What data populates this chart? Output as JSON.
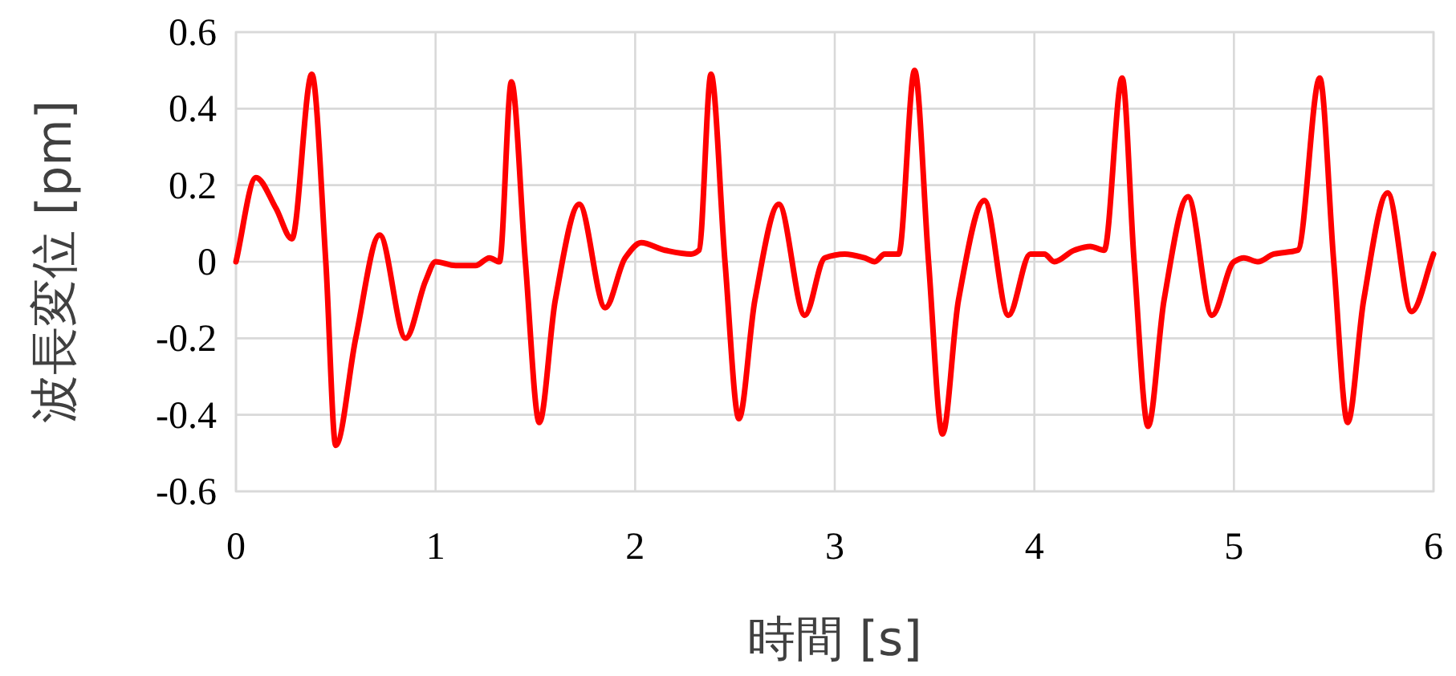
{
  "chart_data": {
    "type": "line",
    "xlabel": "時間 [s]",
    "ylabel": "波長変位 [pm]",
    "xlim": [
      0,
      6
    ],
    "ylim": [
      -0.6,
      0.6
    ],
    "xticks": [
      0,
      1,
      2,
      3,
      4,
      5,
      6
    ],
    "yticks": [
      -0.6,
      -0.4,
      -0.2,
      0,
      0.2,
      0.4,
      0.6
    ],
    "grid": true,
    "marker": "none",
    "line_style": "solid",
    "series": [
      {
        "color": "#ff0000",
        "x": [
          0,
          0.1,
          0.2,
          0.28,
          0.38,
          0.45,
          0.5,
          0.6,
          0.72,
          0.85,
          0.95,
          1.0,
          1.1,
          1.2,
          1.27,
          1.32,
          1.38,
          1.45,
          1.52,
          1.6,
          1.72,
          1.85,
          1.95,
          2.03,
          2.15,
          2.28,
          2.32,
          2.38,
          2.45,
          2.52,
          2.6,
          2.72,
          2.85,
          2.95,
          3.05,
          3.15,
          3.2,
          3.25,
          3.32,
          3.4,
          3.47,
          3.54,
          3.62,
          3.75,
          3.87,
          3.98,
          4.05,
          4.1,
          4.2,
          4.28,
          4.35,
          4.44,
          4.5,
          4.57,
          4.65,
          4.77,
          4.89,
          5.0,
          5.05,
          5.12,
          5.2,
          5.32,
          5.43,
          5.5,
          5.57,
          5.65,
          5.77,
          5.89,
          6.0
        ],
        "values": [
          0,
          0.22,
          0.14,
          0.06,
          0.49,
          0.0,
          -0.48,
          -0.2,
          0.07,
          -0.2,
          -0.05,
          0.0,
          -0.01,
          -0.01,
          0.01,
          0.0,
          0.47,
          0.0,
          -0.42,
          -0.1,
          0.15,
          -0.12,
          0.01,
          0.05,
          0.03,
          0.02,
          0.03,
          0.49,
          0.0,
          -0.41,
          -0.1,
          0.15,
          -0.14,
          0.01,
          0.02,
          0.01,
          0.0,
          0.02,
          0.02,
          0.5,
          0.0,
          -0.45,
          -0.1,
          0.16,
          -0.14,
          0.02,
          0.02,
          0.0,
          0.03,
          0.04,
          0.03,
          0.48,
          0.0,
          -0.43,
          -0.1,
          0.17,
          -0.14,
          0.0,
          0.01,
          0.0,
          0.02,
          0.03,
          0.48,
          0.0,
          -0.42,
          -0.1,
          0.18,
          -0.13,
          0.02
        ]
      }
    ]
  }
}
